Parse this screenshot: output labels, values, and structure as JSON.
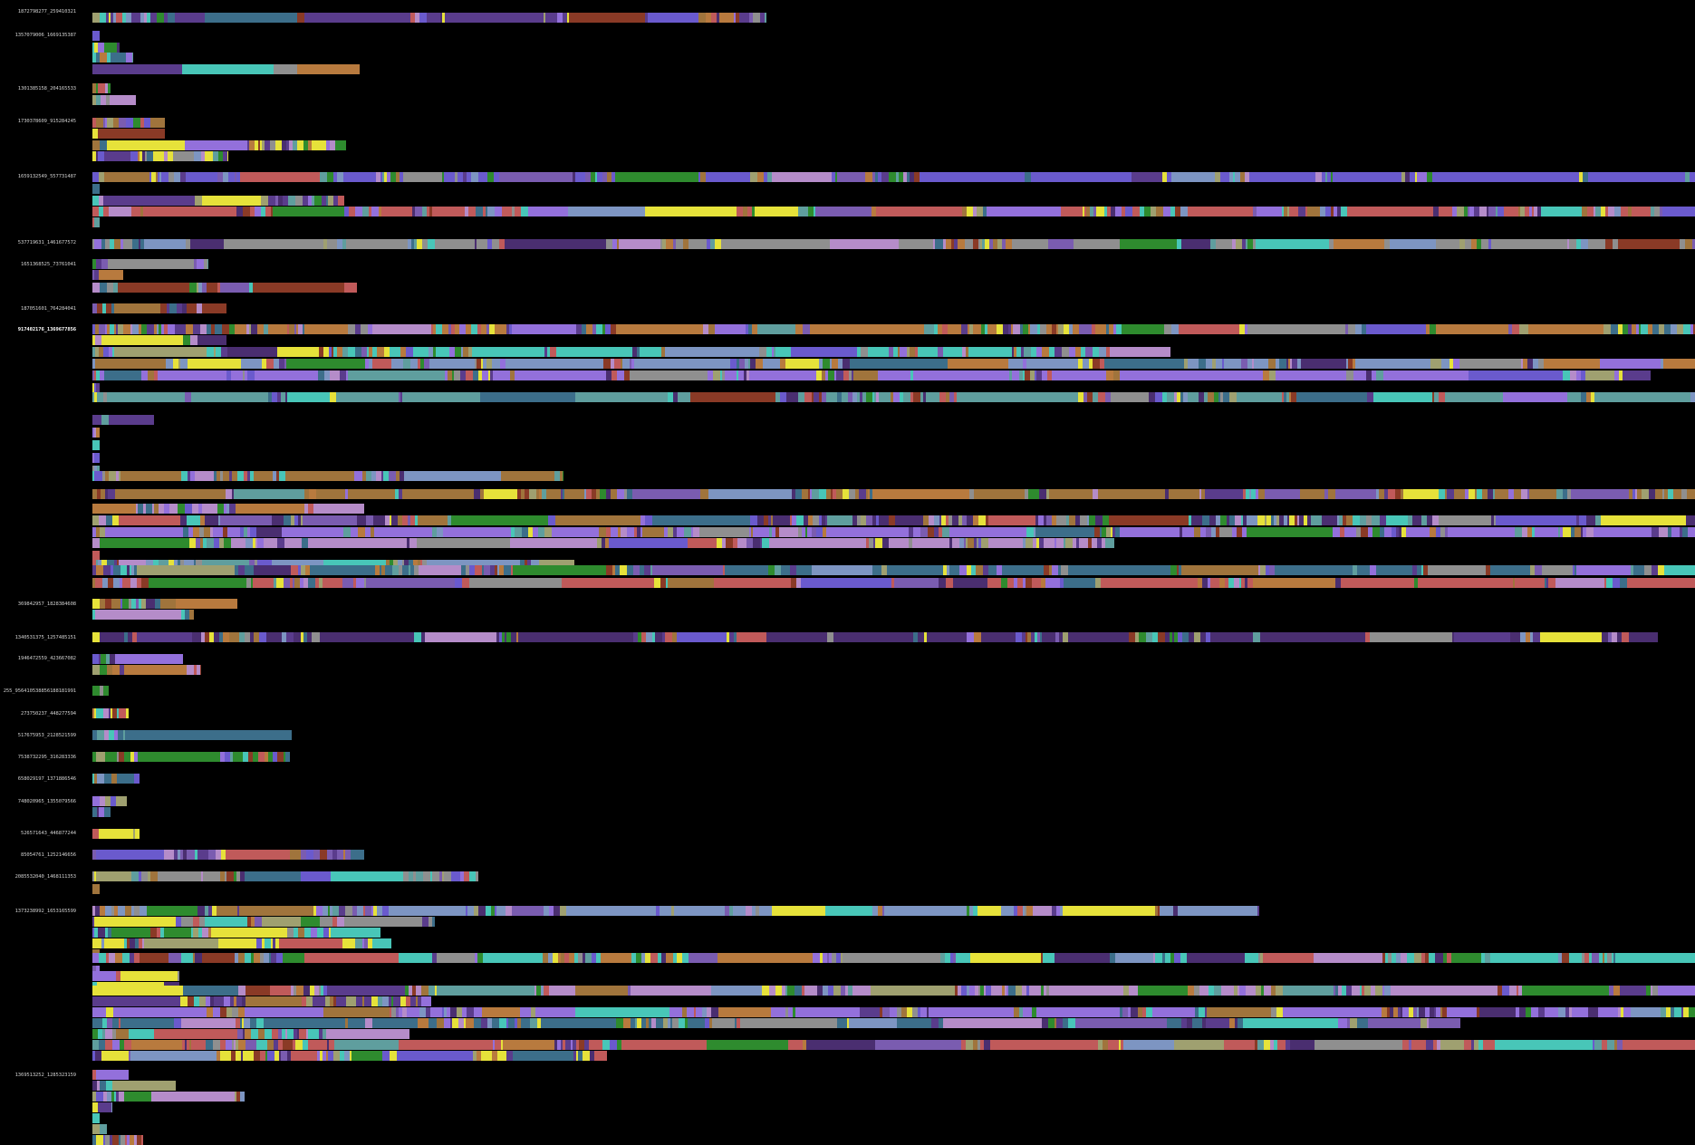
{
  "groups": [
    {
      "label": "1872798277_259410321",
      "highlight": false
    },
    {
      "label": "1357079006_1669135387",
      "highlight": false
    },
    {
      "label": "1301385158_204165533",
      "highlight": false
    },
    {
      "label": "1730378609_915284245",
      "highlight": false
    },
    {
      "label": "1659132549_557731487",
      "highlight": false
    },
    {
      "label": "537719631_1461677572",
      "highlight": false
    },
    {
      "label": "1651368525_73761041",
      "highlight": false
    },
    {
      "label": "187051601_764284041",
      "highlight": false
    },
    {
      "label": "917402176_1369677856",
      "highlight": true
    },
    {
      "label": "369842957_1828384608",
      "highlight": false
    },
    {
      "label": "1340531375_1257485151",
      "highlight": false
    },
    {
      "label": "1946472559_423667082",
      "highlight": false
    },
    {
      "label": "255_956410538856188181991",
      "highlight": false
    },
    {
      "label": "273750237_448277594",
      "highlight": false
    },
    {
      "label": "517675953_2128521599",
      "highlight": false
    },
    {
      "label": "7538732295_316283336",
      "highlight": false
    },
    {
      "label": "658029197_1371886546",
      "highlight": false
    },
    {
      "label": "748020965_1355079566",
      "highlight": false
    },
    {
      "label": "526571643_446877244",
      "highlight": false
    },
    {
      "label": "85054761_1252146656",
      "highlight": false
    },
    {
      "label": "2085532040_1468111353",
      "highlight": false
    },
    {
      "label": "1373238992_1653165599",
      "highlight": false
    },
    {
      "label": "1369513252_1285323159",
      "highlight": false
    }
  ],
  "palette": [
    "#5a3c8c",
    "#7a5cb0",
    "#48c6b8",
    "#8f8f8f",
    "#6a5acd",
    "#b87a3e",
    "#2e8b2e",
    "#9fa070",
    "#4a2e70",
    "#e6e23a",
    "#8a3a26",
    "#7d95c2",
    "#b58cc9",
    "#3c6e8a",
    "#a0743c",
    "#9370db",
    "#c05a5a",
    "#5f9e9e"
  ]
}
